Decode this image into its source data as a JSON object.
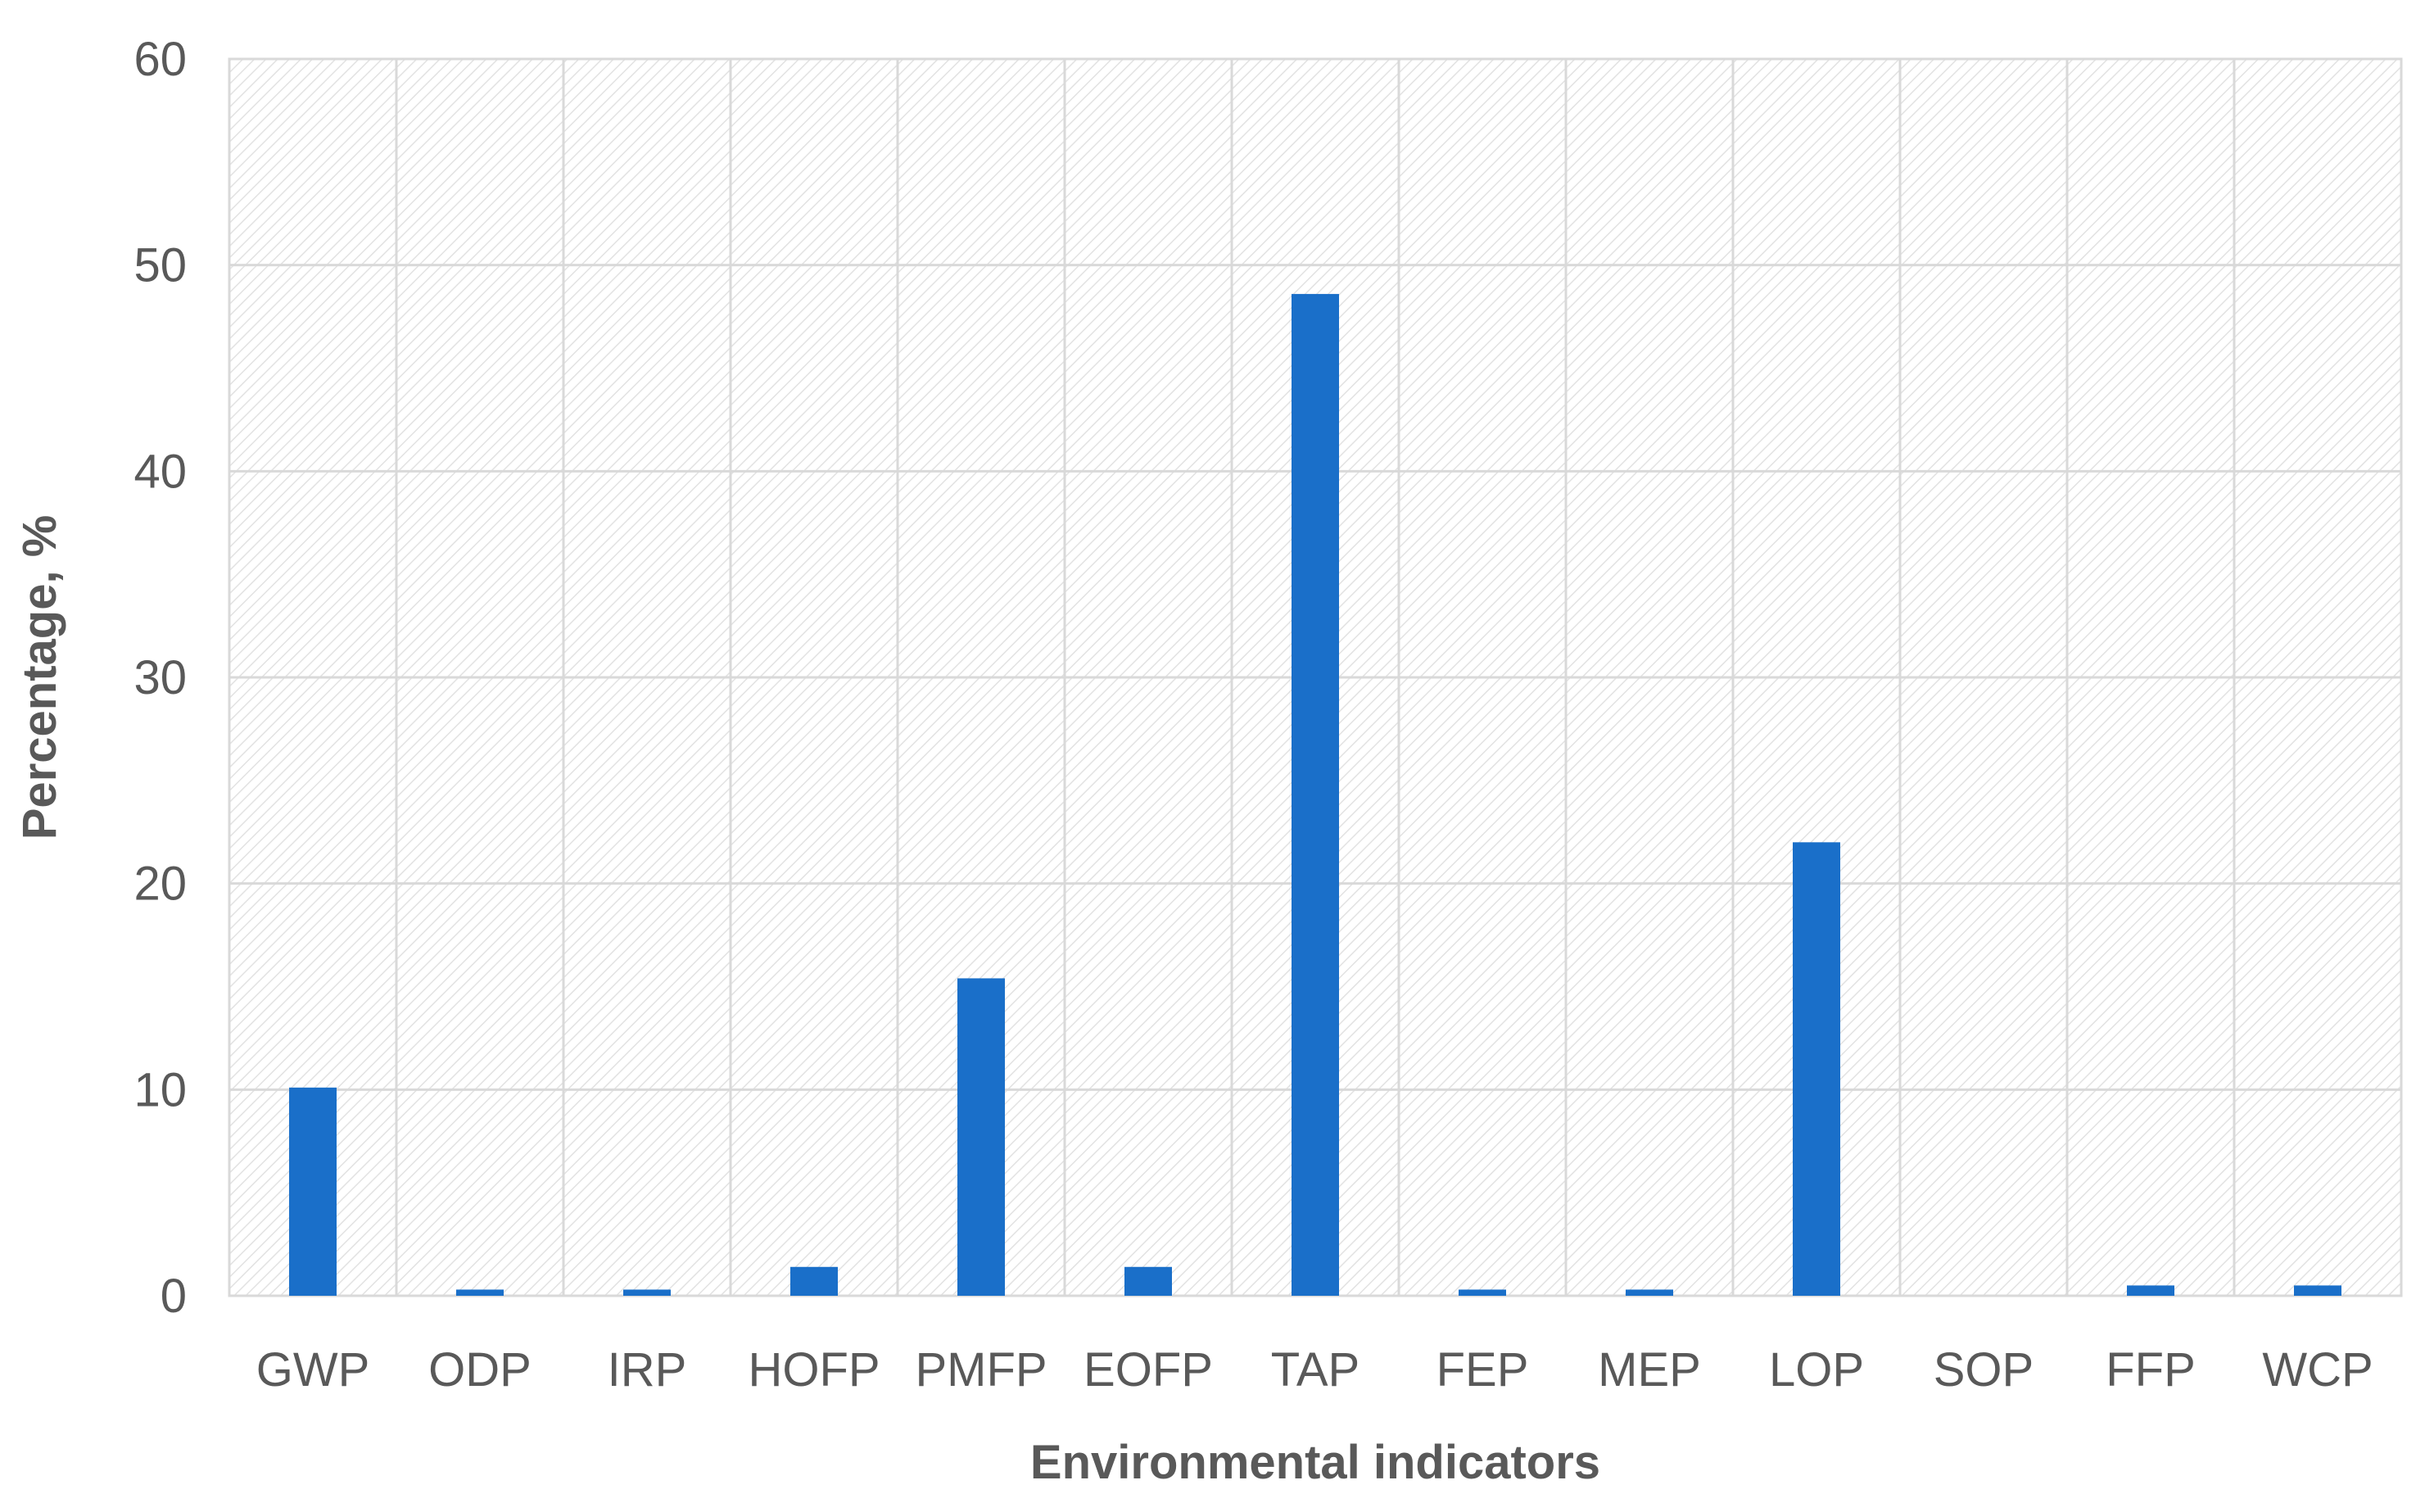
{
  "chart_data": {
    "type": "bar",
    "title": "",
    "xlabel": "Environmental indicators",
    "ylabel": "Percentage, %",
    "categories": [
      "GWP",
      "ODP",
      "IRP",
      "HOFP",
      "PMFP",
      "EOFP",
      "TAP",
      "FEP",
      "MEP",
      "LOP",
      "SOP",
      "FFP",
      "WCP"
    ],
    "values": [
      10.1,
      0.3,
      0.3,
      1.4,
      15.4,
      1.4,
      48.6,
      0.3,
      0.3,
      22.0,
      0.0,
      0.5,
      0.5
    ],
    "ylim": [
      0,
      60
    ],
    "yticks": [
      0,
      10,
      20,
      30,
      40,
      50,
      60
    ],
    "grid": true,
    "background": "hatched",
    "legend": "none",
    "colors": {
      "bar": "#1a6fc9",
      "grid": "#d9d9d9",
      "text": "#595959"
    }
  }
}
